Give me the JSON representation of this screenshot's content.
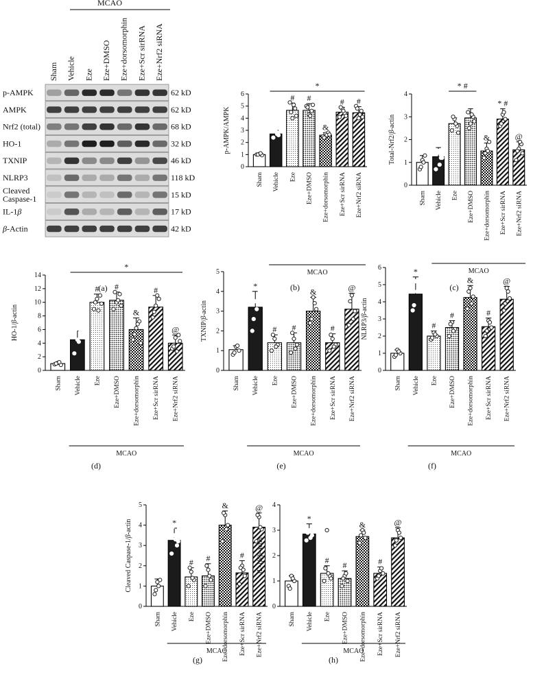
{
  "groups": [
    "Sham",
    "Vehicle",
    "Eze",
    "Eze+DMSO",
    "Eze+dorsomorphin",
    "Eze+Scr sirRNA",
    "Eze+Nrf2 siRNA"
  ],
  "mcao_label": "MCAO",
  "western_blot": {
    "panel_label": "(a)",
    "rows": [
      {
        "protein": "p-AMPK",
        "size": "62 kD",
        "intensities": [
          0.35,
          0.62,
          0.9,
          0.9,
          0.55,
          0.85,
          0.85
        ]
      },
      {
        "protein": "AMPK",
        "size": "62 kD",
        "intensities": [
          0.8,
          0.8,
          0.8,
          0.8,
          0.8,
          0.8,
          0.8
        ]
      },
      {
        "protein": "Nrf2 (total)",
        "size": "68 kD",
        "intensities": [
          0.5,
          0.55,
          0.8,
          0.85,
          0.6,
          0.85,
          0.6
        ]
      },
      {
        "protein": "HO-1",
        "size": "32 kD",
        "intensities": [
          0.3,
          0.55,
          0.95,
          0.95,
          0.65,
          0.9,
          0.6
        ]
      },
      {
        "protein": "TXNIP",
        "size": "46 kD",
        "intensities": [
          0.25,
          0.85,
          0.45,
          0.45,
          0.8,
          0.4,
          0.75
        ]
      },
      {
        "protein": "NLRP3",
        "size": "118 kD",
        "intensities": [
          0.2,
          0.6,
          0.3,
          0.3,
          0.55,
          0.3,
          0.55
        ]
      },
      {
        "protein": "Cleaved Caspase-1",
        "size": "15 kD",
        "intensities": [
          0.15,
          0.55,
          0.25,
          0.2,
          0.6,
          0.25,
          0.55
        ]
      },
      {
        "protein": "IL-1β",
        "size": "17 kD",
        "intensities": [
          0.15,
          0.7,
          0.3,
          0.25,
          0.65,
          0.25,
          0.65
        ]
      },
      {
        "protein": "β-Actin",
        "size": "42 kD",
        "intensities": [
          0.8,
          0.8,
          0.8,
          0.8,
          0.8,
          0.8,
          0.8
        ]
      }
    ]
  },
  "chart_data": [
    {
      "panel": "(b)",
      "type": "bar",
      "ylabel": "p-AMPK/AMPK",
      "ylim": [
        0,
        6
      ],
      "yticks": [
        0,
        1,
        2,
        3,
        4,
        5,
        6
      ],
      "values": [
        1.0,
        2.7,
        4.65,
        4.65,
        2.6,
        4.5,
        4.45
      ],
      "errors": [
        0.1,
        0.3,
        0.6,
        0.55,
        0.2,
        0.4,
        0.5
      ],
      "annotations": [
        "",
        "",
        "#",
        "#",
        "&",
        "#",
        "#"
      ],
      "points": [
        [
          1.0,
          1.05,
          0.95,
          1.0,
          1.1
        ],
        [
          2.4,
          2.9,
          2.6,
          3.0,
          2.7
        ],
        [
          5.3,
          4.0,
          4.8,
          4.5,
          5.1,
          4.2
        ],
        [
          5.0,
          4.3,
          4.6,
          4.9,
          4.2,
          5.1
        ],
        [
          2.5,
          2.7,
          2.8,
          2.4,
          2.6,
          2.65
        ],
        [
          4.1,
          4.8,
          4.4,
          4.9,
          4.6,
          4.2
        ],
        [
          5.0,
          4.0,
          4.6,
          4.8,
          4.3,
          4.1
        ]
      ],
      "sig_line": {
        "from": 1,
        "to": 6,
        "label": "*"
      }
    },
    {
      "panel": "(c)",
      "type": "bar",
      "ylabel": "Total-Nrf2/β-actin",
      "ylim": [
        0,
        4
      ],
      "yticks": [
        0,
        1,
        2,
        3,
        4
      ],
      "values": [
        1.0,
        1.25,
        2.7,
        2.95,
        1.5,
        2.9,
        1.55
      ],
      "errors": [
        0.3,
        0.4,
        0.25,
        0.4,
        0.35,
        0.45,
        0.35
      ],
      "annotations": [
        "",
        "",
        "",
        "",
        "&",
        "* #",
        "@"
      ],
      "points": [
        [
          0.7,
          1.1,
          1.3,
          0.8,
          1.0
        ],
        [
          0.7,
          1.5,
          1.2,
          1.4,
          0.9,
          1.2
        ],
        [
          2.4,
          2.9,
          2.6,
          3.0,
          2.7,
          2.3
        ],
        [
          3.2,
          2.7,
          3.0,
          2.5,
          3.1,
          2.8
        ],
        [
          1.2,
          1.6,
          1.9,
          1.4,
          1.5
        ],
        [
          2.6,
          3.1,
          2.9,
          2.7,
          3.2
        ],
        [
          1.1,
          1.6,
          1.8,
          1.5,
          1.9,
          1.4
        ]
      ],
      "sig_line": {
        "from": 2,
        "to": 3,
        "label": "* #"
      }
    },
    {
      "panel": "(d)",
      "type": "bar",
      "ylabel": "HO-1/β-actin",
      "ylim": [
        0,
        14
      ],
      "yticks": [
        0,
        2,
        4,
        6,
        8,
        10,
        12,
        14
      ],
      "values": [
        1.0,
        4.5,
        10.0,
        10.3,
        6.0,
        9.3,
        4.0
      ],
      "errors": [
        0.2,
        1.3,
        1.2,
        1.2,
        1.7,
        1.7,
        1.2
      ],
      "annotations": [
        "",
        "",
        "#",
        "#",
        "&",
        "#",
        "@"
      ],
      "points": [
        [
          0.9,
          1.1,
          0.8,
          1.0,
          1.2
        ],
        [
          2.5,
          4.5,
          5.8,
          6.0,
          4.2
        ],
        [
          9.0,
          10.5,
          11.0,
          10.0,
          8.8,
          9.8
        ],
        [
          9.0,
          10.0,
          11.2,
          11.5,
          10.3,
          9.5
        ],
        [
          4.5,
          6.2,
          7.2,
          5.3,
          6.8,
          4.0
        ],
        [
          7.8,
          9.5,
          10.5,
          8.6,
          11.0
        ],
        [
          3.2,
          4.8,
          5.2,
          3.5,
          2.8,
          4.3
        ]
      ],
      "sig_line": {
        "from": 1,
        "to": 6,
        "label": "*"
      }
    },
    {
      "panel": "(e)",
      "type": "bar",
      "ylabel": "TXNIP/β-actin",
      "ylim": [
        0,
        5
      ],
      "yticks": [
        0,
        1,
        2,
        3,
        4,
        5
      ],
      "values": [
        1.05,
        3.2,
        1.4,
        1.4,
        3.0,
        1.4,
        3.1
      ],
      "errors": [
        0.2,
        0.8,
        0.4,
        0.5,
        0.7,
        0.45,
        0.8
      ],
      "annotations": [
        "",
        "*",
        "#",
        "#",
        "&",
        "#",
        "@"
      ],
      "points": [
        [
          0.8,
          1.2,
          1.0,
          0.9,
          1.25
        ],
        [
          2.0,
          3.5,
          3.8,
          2.6,
          3.1,
          4.0
        ],
        [
          1.0,
          1.6,
          1.3,
          1.8,
          1.2
        ],
        [
          0.9,
          1.6,
          1.3,
          1.9,
          1.1
        ],
        [
          2.4,
          3.7,
          3.1,
          2.6,
          3.4
        ],
        [
          1.0,
          1.6,
          1.3,
          1.8,
          1.2
        ],
        [
          2.3,
          3.8,
          3.0,
          3.5,
          2.6
        ]
      ]
    },
    {
      "panel": "(f)",
      "type": "bar",
      "ylabel": "NLRP3/β-actin",
      "ylim": [
        0,
        6
      ],
      "yticks": [
        0,
        1,
        2,
        3,
        4,
        5,
        6
      ],
      "values": [
        1.0,
        4.45,
        2.0,
        2.5,
        4.25,
        2.55,
        4.15
      ],
      "errors": [
        0.2,
        1.0,
        0.3,
        0.4,
        0.7,
        0.5,
        0.75
      ],
      "annotations": [
        "",
        "*",
        "#",
        "#",
        "&",
        "#",
        "@"
      ],
      "points": [
        [
          0.8,
          1.2,
          1.0,
          0.9,
          1.1
        ],
        [
          3.5,
          5.2,
          4.8,
          3.8,
          4.6
        ],
        [
          1.8,
          2.2,
          2.0,
          1.9,
          2.1
        ],
        [
          2.0,
          2.8,
          2.4,
          2.7,
          2.3
        ],
        [
          3.6,
          4.8,
          4.3,
          4.6,
          3.9
        ],
        [
          2.0,
          2.9,
          2.5,
          2.3,
          2.8
        ],
        [
          3.5,
          4.8,
          4.2,
          3.9,
          4.6
        ]
      ]
    },
    {
      "panel": "(g)",
      "type": "bar",
      "ylabel": "Cleaved Caspase-1/β-actin",
      "ylim": [
        0,
        5
      ],
      "yticks": [
        0,
        1,
        2,
        3,
        4,
        5
      ],
      "values": [
        1.0,
        3.25,
        1.45,
        1.5,
        4.0,
        1.65,
        3.9
      ],
      "errors": [
        0.35,
        0.6,
        0.45,
        0.6,
        0.7,
        0.6,
        0.7
      ],
      "annotations": [
        "",
        "*",
        "#",
        "#",
        "&",
        "#",
        "@"
      ],
      "points": [
        [
          0.6,
          1.2,
          1.3,
          0.8,
          1.0
        ],
        [
          2.6,
          3.5,
          3.0,
          3.9,
          3.3,
          3.2
        ],
        [
          1.0,
          1.7,
          1.3,
          1.9,
          1.4
        ],
        [
          1.0,
          1.8,
          1.3,
          2.0,
          1.5
        ],
        [
          3.2,
          4.5,
          4.0,
          4.6,
          3.8
        ],
        [
          1.1,
          2.0,
          1.5,
          1.9,
          1.8
        ],
        [
          3.2,
          4.4,
          3.8,
          4.5,
          3.9
        ]
      ]
    },
    {
      "panel": "(h)",
      "type": "bar",
      "ylabel": "IL-1β/β-actin",
      "ylim": [
        0,
        4
      ],
      "yticks": [
        0,
        1,
        2,
        3,
        4
      ],
      "values": [
        1.0,
        2.85,
        1.3,
        1.1,
        2.75,
        1.3,
        2.7
      ],
      "errors": [
        0.2,
        0.4,
        0.3,
        0.3,
        0.25,
        0.25,
        0.4
      ],
      "annotations": [
        "",
        "*",
        "#",
        "#",
        "&",
        "#",
        "@"
      ],
      "points": [
        [
          0.8,
          1.2,
          1.0,
          0.7,
          1.1
        ],
        [
          2.6,
          3.0,
          2.8,
          2.9,
          2.7,
          3.1
        ],
        [
          1.0,
          3.0,
          1.2,
          1.5,
          1.3,
          1.1
        ],
        [
          0.8,
          1.2,
          1.0,
          1.1,
          1.3
        ],
        [
          2.5,
          3.0,
          2.7,
          2.8,
          2.9
        ],
        [
          1.1,
          1.4,
          1.3,
          1.2,
          1.5
        ],
        [
          2.4,
          3.0,
          2.7,
          2.6,
          2.9
        ]
      ]
    }
  ]
}
